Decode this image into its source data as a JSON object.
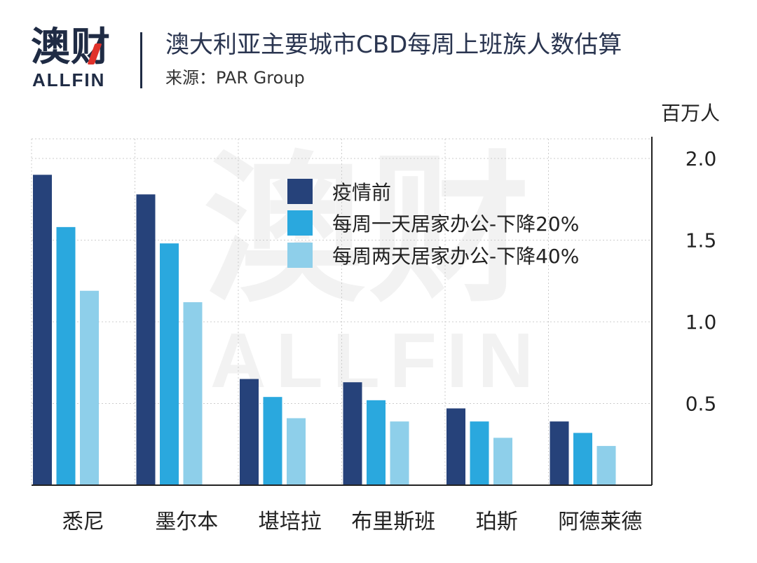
{
  "logo": {
    "cn": "澳财",
    "en": "ALLFIN"
  },
  "header": {
    "title": "澳大利亚主要城市CBD每周上班族人数估算",
    "source": "来源：PAR Group"
  },
  "chart_data": {
    "type": "bar",
    "title": "澳大利亚主要城市CBD每周上班族人数估算",
    "unit": "百万人",
    "categories": [
      "悉尼",
      "墨尔本",
      "堪培拉",
      "布里斯班",
      "珀斯",
      "阿德莱德"
    ],
    "series": [
      {
        "name": "疫情前",
        "color": "#26427a",
        "values": [
          1.9,
          1.78,
          0.65,
          0.63,
          0.47,
          0.39
        ]
      },
      {
        "name": "每周一天居家办公-下降20%",
        "color": "#2aa8de",
        "values": [
          1.58,
          1.48,
          0.54,
          0.52,
          0.39,
          0.32
        ]
      },
      {
        "name": "每周两天居家办公-下降40%",
        "color": "#8ecfea",
        "values": [
          1.19,
          1.12,
          0.41,
          0.39,
          0.29,
          0.24
        ]
      }
    ],
    "ylim": [
      0,
      2.0
    ],
    "yticks": [
      "0.5",
      "1.0",
      "1.5",
      "2.0"
    ],
    "y_axis_side": "right",
    "grid": true,
    "legend": "top-center",
    "watermark": {
      "cn": "澳财",
      "en": "ALLFIN"
    }
  }
}
